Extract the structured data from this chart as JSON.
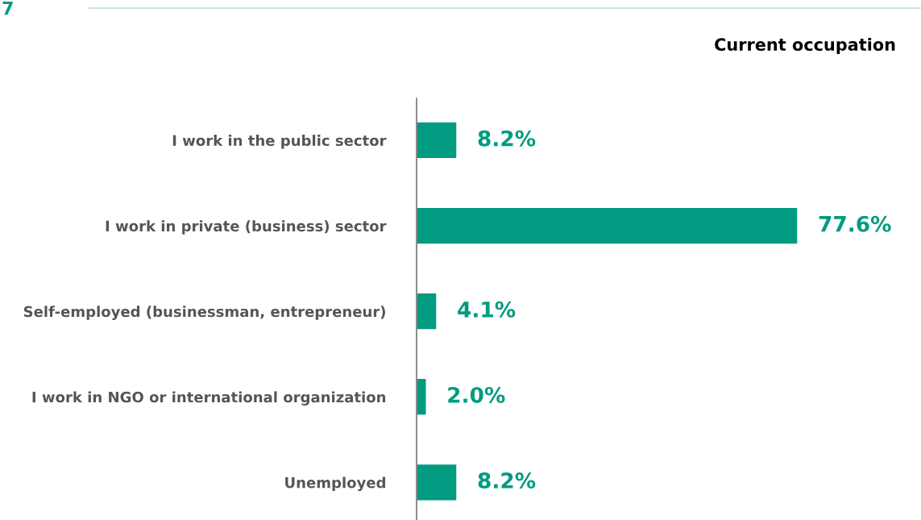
{
  "chart_data": {
    "type": "bar",
    "orientation": "horizontal",
    "title": "Current occupation",
    "categories": [
      "I work in the public sector",
      "I work in private (business) sector",
      "Self-employed (businessman, entrepreneur)",
      "I work in NGO or international organization",
      "Unemployed"
    ],
    "values": [
      8.2,
      77.6,
      4.1,
      2.0,
      8.2
    ],
    "value_labels": [
      "8.2%",
      "77.6%",
      "4.1%",
      "2.0%",
      "8.2%"
    ],
    "color": "#009b80",
    "tick_labels": "y",
    "grid": false,
    "legend": false,
    "annotations": [
      "7"
    ]
  }
}
